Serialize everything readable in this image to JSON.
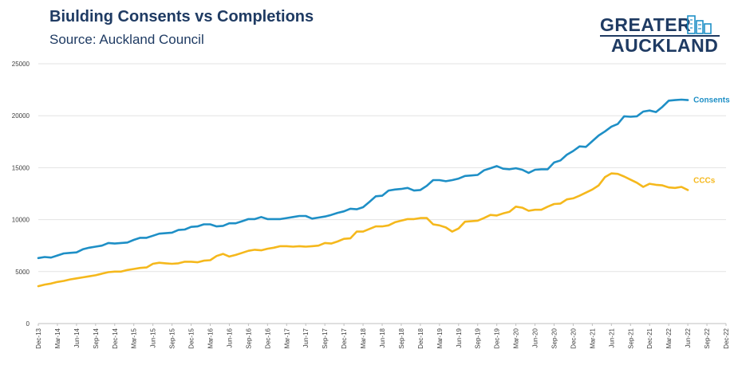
{
  "title": "Biulding Consents vs Completions",
  "subtitle": "Source: Auckland Council",
  "logo": {
    "line1": "GREATER",
    "line2": "AUCKLAND",
    "icon": "city-buildings-icon",
    "color": "#1f3b63"
  },
  "chart_data": {
    "type": "line",
    "x_tick_labels": [
      "Dec-13",
      "Mar-14",
      "Jun-14",
      "Sep-14",
      "Dec-14",
      "Mar-15",
      "Jun-15",
      "Sep-15",
      "Dec-15",
      "Mar-16",
      "Jun-16",
      "Sep-16",
      "Dec-16",
      "Mar-17",
      "Jun-17",
      "Sep-17",
      "Dec-17",
      "Mar-18",
      "Jun-18",
      "Sep-18",
      "Dec-18",
      "Mar-19",
      "Jun-19",
      "Sep-19",
      "Dec-19",
      "Mar-20",
      "Jun-20",
      "Sep-20",
      "Dec-20",
      "Mar-21",
      "Jun-21",
      "Sep-21",
      "Dec-21",
      "Mar-22",
      "Jun-22",
      "Sep-22",
      "Dec-22"
    ],
    "x_range": [
      "Dec-13",
      "Dec-22"
    ],
    "ylim": [
      0,
      25000
    ],
    "yticks": [
      0,
      5000,
      10000,
      15000,
      20000,
      25000
    ],
    "grid": true,
    "legend": "inline labels at line ends",
    "series": [
      {
        "name": "Consents",
        "color": "#1e8fc6",
        "x": [
          "Dec-13",
          "Jan-14",
          "Feb-14",
          "Mar-14",
          "Apr-14",
          "May-14",
          "Jun-14",
          "Jul-14",
          "Aug-14",
          "Sep-14",
          "Oct-14",
          "Nov-14",
          "Dec-14",
          "Jan-15",
          "Feb-15",
          "Mar-15",
          "Apr-15",
          "May-15",
          "Jun-15",
          "Jul-15",
          "Aug-15",
          "Sep-15",
          "Oct-15",
          "Nov-15",
          "Dec-15",
          "Jan-16",
          "Feb-16",
          "Mar-16",
          "Apr-16",
          "May-16",
          "Jun-16",
          "Jul-16",
          "Aug-16",
          "Sep-16",
          "Oct-16",
          "Nov-16",
          "Dec-16",
          "Jan-17",
          "Feb-17",
          "Mar-17",
          "Apr-17",
          "May-17",
          "Jun-17",
          "Jul-17",
          "Aug-17",
          "Sep-17",
          "Oct-17",
          "Nov-17",
          "Dec-17",
          "Jan-18",
          "Feb-18",
          "Mar-18",
          "Apr-18",
          "May-18",
          "Jun-18",
          "Jul-18",
          "Aug-18",
          "Sep-18",
          "Oct-18",
          "Nov-18",
          "Dec-18",
          "Jan-19",
          "Feb-19",
          "Mar-19",
          "Apr-19",
          "May-19",
          "Jun-19",
          "Jul-19",
          "Aug-19",
          "Sep-19",
          "Oct-19",
          "Nov-19",
          "Dec-19",
          "Jan-20",
          "Feb-20",
          "Mar-20",
          "Apr-20",
          "May-20",
          "Jun-20",
          "Jul-20",
          "Aug-20",
          "Sep-20",
          "Oct-20",
          "Nov-20",
          "Dec-20",
          "Jan-21",
          "Feb-21",
          "Mar-21",
          "Apr-21",
          "May-21",
          "Jun-21",
          "Jul-21",
          "Aug-21",
          "Sep-21",
          "Oct-21",
          "Nov-21",
          "Dec-21",
          "Jan-22",
          "Feb-22",
          "Mar-22",
          "Apr-22",
          "May-22",
          "Jun-22"
        ],
        "values": [
          6300,
          6400,
          6350,
          6550,
          6750,
          6800,
          6850,
          7150,
          7300,
          7400,
          7500,
          7750,
          7700,
          7750,
          7800,
          8050,
          8250,
          8250,
          8450,
          8650,
          8700,
          8750,
          9000,
          9050,
          9300,
          9350,
          9550,
          9550,
          9350,
          9400,
          9650,
          9650,
          9850,
          10050,
          10050,
          10250,
          10050,
          10050,
          10050,
          10150,
          10250,
          10350,
          10350,
          10100,
          10200,
          10300,
          10450,
          10650,
          10800,
          11050,
          11000,
          11200,
          11700,
          12250,
          12300,
          12800,
          12900,
          12950,
          13050,
          12800,
          12850,
          13250,
          13800,
          13800,
          13700,
          13800,
          13950,
          14200,
          14250,
          14300,
          14750,
          14950,
          15150,
          14900,
          14850,
          14950,
          14800,
          14500,
          14800,
          14850,
          14850,
          15500,
          15700,
          16250,
          16600,
          17050,
          17000,
          17550,
          18100,
          18500,
          18950,
          19200,
          19950,
          19900,
          19950,
          20400,
          20500,
          20350,
          20850,
          21450,
          21500,
          21550,
          21500
        ]
      },
      {
        "name": "CCCs",
        "color": "#f5b81c",
        "x": [
          "Dec-13",
          "Jan-14",
          "Feb-14",
          "Mar-14",
          "Apr-14",
          "May-14",
          "Jun-14",
          "Jul-14",
          "Aug-14",
          "Sep-14",
          "Oct-14",
          "Nov-14",
          "Dec-14",
          "Jan-15",
          "Feb-15",
          "Mar-15",
          "Apr-15",
          "May-15",
          "Jun-15",
          "Jul-15",
          "Aug-15",
          "Sep-15",
          "Oct-15",
          "Nov-15",
          "Dec-15",
          "Jan-16",
          "Feb-16",
          "Mar-16",
          "Apr-16",
          "May-16",
          "Jun-16",
          "Jul-16",
          "Aug-16",
          "Sep-16",
          "Oct-16",
          "Nov-16",
          "Dec-16",
          "Jan-17",
          "Feb-17",
          "Mar-17",
          "Apr-17",
          "May-17",
          "Jun-17",
          "Jul-17",
          "Aug-17",
          "Sep-17",
          "Oct-17",
          "Nov-17",
          "Dec-17",
          "Jan-18",
          "Feb-18",
          "Mar-18",
          "Apr-18",
          "May-18",
          "Jun-18",
          "Jul-18",
          "Aug-18",
          "Sep-18",
          "Oct-18",
          "Nov-18",
          "Dec-18",
          "Jan-19",
          "Feb-19",
          "Mar-19",
          "Apr-19",
          "May-19",
          "Jun-19",
          "Jul-19",
          "Aug-19",
          "Sep-19",
          "Oct-19",
          "Nov-19",
          "Dec-19",
          "Jan-20",
          "Feb-20",
          "Mar-20",
          "Apr-20",
          "May-20",
          "Jun-20",
          "Jul-20",
          "Aug-20",
          "Sep-20",
          "Oct-20",
          "Nov-20",
          "Dec-20",
          "Jan-21",
          "Feb-21",
          "Mar-21",
          "Apr-21",
          "May-21",
          "Jun-21",
          "Jul-21",
          "Aug-21",
          "Sep-21",
          "Oct-21",
          "Nov-21",
          "Dec-21",
          "Jan-22",
          "Feb-22",
          "Mar-22",
          "Apr-22",
          "May-22",
          "Jun-22"
        ],
        "values": [
          3600,
          3750,
          3850,
          4000,
          4100,
          4250,
          4350,
          4450,
          4550,
          4650,
          4800,
          4950,
          5000,
          5000,
          5150,
          5250,
          5350,
          5400,
          5750,
          5850,
          5800,
          5750,
          5800,
          5950,
          5950,
          5900,
          6050,
          6100,
          6500,
          6700,
          6450,
          6600,
          6800,
          7000,
          7100,
          7050,
          7200,
          7300,
          7450,
          7450,
          7400,
          7450,
          7400,
          7450,
          7500,
          7750,
          7700,
          7900,
          8150,
          8200,
          8850,
          8850,
          9100,
          9350,
          9350,
          9450,
          9750,
          9900,
          10050,
          10050,
          10150,
          10150,
          9550,
          9450,
          9250,
          8850,
          9150,
          9800,
          9850,
          9900,
          10150,
          10450,
          10400,
          10600,
          10750,
          11250,
          11150,
          10850,
          10950,
          10950,
          11250,
          11500,
          11550,
          11950,
          12050,
          12300,
          12600,
          12900,
          13300,
          14100,
          14450,
          14400,
          14150,
          13850,
          13550,
          13150,
          13450,
          13350,
          13300,
          13100,
          13050,
          13150,
          12850
        ]
      }
    ]
  }
}
